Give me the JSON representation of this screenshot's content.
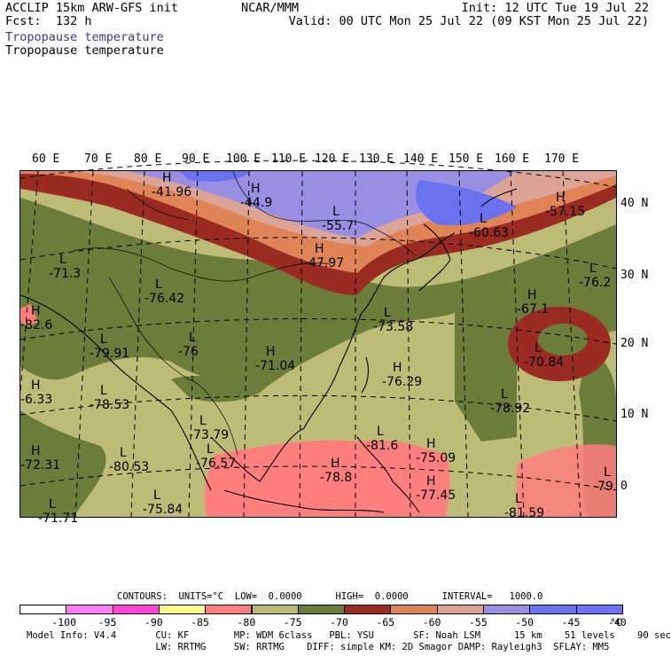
{
  "header": {
    "model": "ACCLIP 15km ARW-GFS init",
    "fcst": "Fcst:  132 h",
    "center": "NCAR/MMM",
    "init": "Init: 12 UTC Tue 19 Jul 22",
    "valid": "Valid: 00 UTC Mon 25 Jul 22 (09 KST Mon 25 Jul 22)",
    "title_colored": "Tropopause temperature",
    "title_black": "Tropopause temperature"
  },
  "map": {
    "lon_labels": [
      "60 E",
      "70 E",
      "80 E",
      "90 E",
      "100 E",
      "110 E",
      "120 E",
      "130 E",
      "140 E",
      "150 E",
      "160 E",
      "170 E"
    ],
    "lat_labels": [
      "40 N",
      "30 N",
      "20 N",
      "10 N",
      "0"
    ],
    "markers": [
      {
        "letter": "H",
        "value": "-41.96"
      },
      {
        "letter": "H",
        "value": "-44.9"
      },
      {
        "letter": "L",
        "value": "-55.7"
      },
      {
        "letter": "L",
        "value": "-60.63"
      },
      {
        "letter": "H",
        "value": "-57.15"
      },
      {
        "letter": "H",
        "value": "-47.97"
      },
      {
        "letter": "L",
        "value": "-71.3"
      },
      {
        "letter": "L",
        "value": "-76.42"
      },
      {
        "letter": "L",
        "value": "-76.2"
      },
      {
        "letter": "H",
        "value": "-67.1"
      },
      {
        "letter": "L",
        "value": "-73.58"
      },
      {
        "letter": "L",
        "value": "-79.91"
      },
      {
        "letter": "L",
        "value": "-76"
      },
      {
        "letter": "H",
        "value": "-71.04"
      },
      {
        "letter": "L",
        "value": "-70.84"
      },
      {
        "letter": "H",
        "value": "-76.29"
      },
      {
        "letter": "L",
        "value": "-78.53"
      },
      {
        "letter": "L",
        "value": "-78.92"
      },
      {
        "letter": "L",
        "value": "-73.79"
      },
      {
        "letter": "L",
        "value": "-81.6"
      },
      {
        "letter": "H",
        "value": "-75.09"
      },
      {
        "letter": "H",
        "value": "-72.31"
      },
      {
        "letter": "L",
        "value": "-80.53"
      },
      {
        "letter": "L",
        "value": "-76.57"
      },
      {
        "letter": "H",
        "value": "-78.8"
      },
      {
        "letter": "H",
        "value": "-77.45"
      },
      {
        "letter": "L",
        "value": "-81.59"
      },
      {
        "letter": "L",
        "value": "-75.84"
      },
      {
        "letter": "L",
        "value": "-79"
      },
      {
        "letter": "L",
        "value": "-71.71"
      },
      {
        "letter": "H",
        "value": "-82.6"
      },
      {
        "letter": "H",
        "value": "-6.33"
      }
    ]
  },
  "contours_line": "CONTOURS:  UNITS=°C  LOW=  0.0000      HIGH=  0.0000      INTERVAL=   1000.0",
  "colorbar": {
    "colors": [
      "#ffffff",
      "#ff7cf3",
      "#ff44d6",
      "#ffff88",
      "#ff7e7e",
      "#bcbc76",
      "#6b7c3b",
      "#9a2b22",
      "#de8456",
      "#dca496",
      "#9a8ee2",
      "#6b72ee",
      "#6f73ff"
    ],
    "labels": [
      "-100",
      "-95",
      "-90",
      "-85",
      "-80",
      "-75",
      "-70",
      "-65",
      "-60",
      "-55",
      "-50",
      "-45",
      "-40"
    ],
    "unit": "°C"
  },
  "footer": {
    "line1": "Model Info: V4.4       CU: KF        MP: WDM 6class   PBL: YSU       SF: Noah LSM      15 km    51 levels    90 sec",
    "line2": "                       LW: RRTMG     SW: RRTMG    DIFF: simple KM: 2D Smagor DAMP: Rayleigh3  SFLAY: MM5"
  }
}
